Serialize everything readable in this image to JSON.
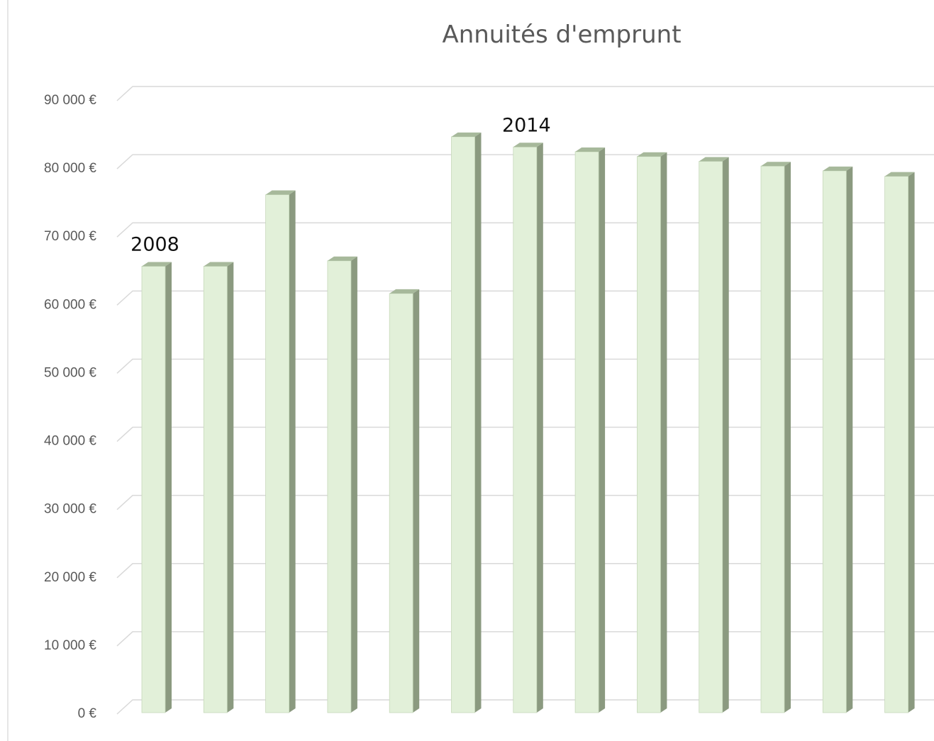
{
  "chart_data": {
    "type": "bar",
    "title": "Annuités d'emprunt",
    "xlabel": "",
    "ylabel": "",
    "categories": [
      "2008",
      "",
      "",
      "",
      "",
      "",
      "2014",
      "",
      "",
      "",
      "",
      "",
      ""
    ],
    "values": [
      65500,
      65500,
      76000,
      66300,
      61500,
      84500,
      83000,
      82300,
      81600,
      80900,
      80200,
      79500,
      78700
    ],
    "ylim": [
      0,
      90000
    ],
    "yticks": [
      0,
      10000,
      20000,
      30000,
      40000,
      50000,
      60000,
      70000,
      80000,
      90000
    ],
    "ytick_labels": [
      "0 €",
      "10 000 €",
      "20 000 €",
      "30 000 €",
      "40 000 €",
      "50 000 €",
      "60 000 €",
      "70 000 €",
      "80 000 €",
      "90 000 €"
    ],
    "annotations": [
      {
        "text": "2008",
        "category_index": 0
      },
      {
        "text": "2014",
        "category_index": 6
      }
    ],
    "grid": true,
    "legend": "none",
    "bar_style": "3d-column",
    "colors": {
      "bar_front": "#e2f0d9",
      "bar_side": "#8b9a80",
      "bar_top": "#a7b99b",
      "bar_outline": "#c7d9bb",
      "grid": "#d9d9d9",
      "axis_text": "#595959"
    }
  }
}
